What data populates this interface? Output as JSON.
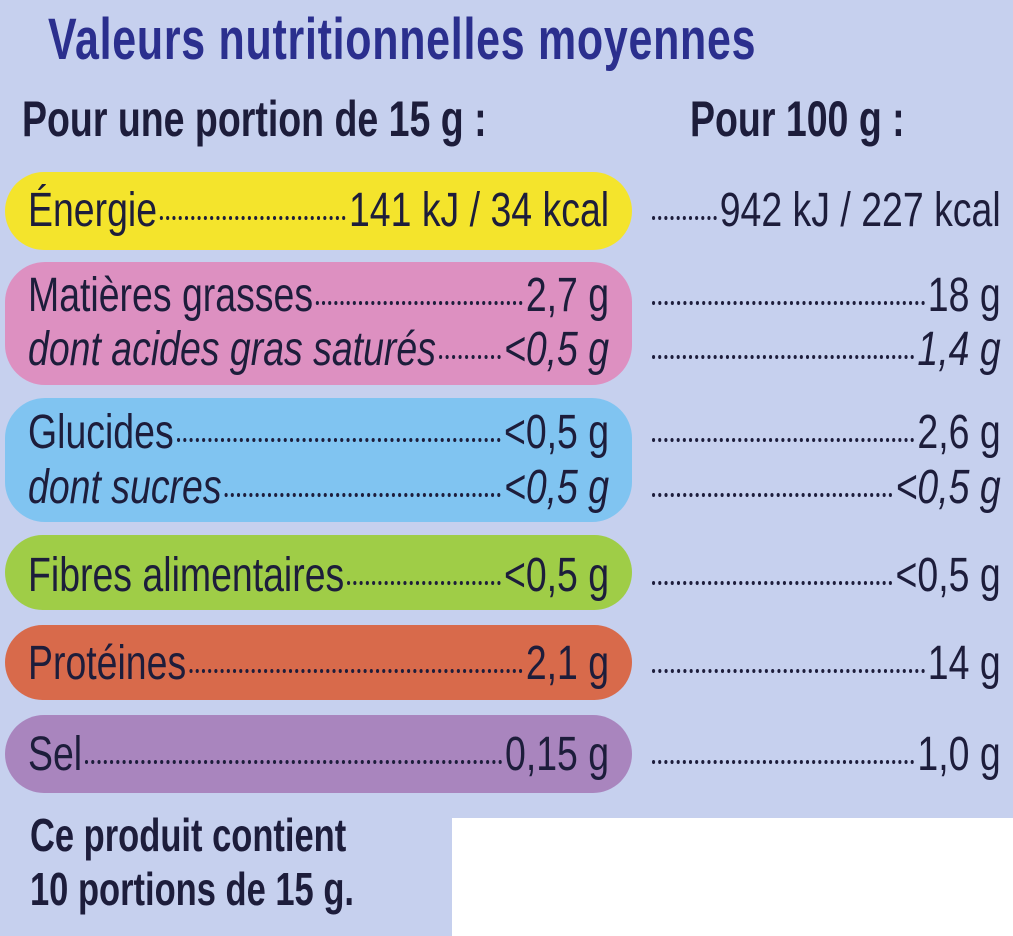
{
  "title": "Valeurs nutritionnelles moyennes",
  "headers": {
    "portion": "Pour une portion de 15 g :",
    "per100": "Pour 100 g :"
  },
  "colors": {
    "title": "#2b2f8e",
    "background": "#c6d0ee",
    "energy": "#f4e42c",
    "fat": "#dd90c1",
    "carbs": "#80c4f1",
    "fibre": "#9fcd47",
    "protein": "#d86a4b",
    "salt": "#a985be"
  },
  "rows": [
    {
      "label": "Énergie",
      "portion": "141 kJ / 34 kcal",
      "per100": "942 kJ / 227 kcal"
    },
    {
      "label": "Matières grasses",
      "portion": "2,7 g",
      "per100": "18 g"
    },
    {
      "label": "dont acides gras saturés",
      "portion": "<0,5 g",
      "per100": "1,4 g"
    },
    {
      "label": "Glucides",
      "portion": "<0,5 g",
      "per100": "2,6 g"
    },
    {
      "label": "dont sucres",
      "portion": "<0,5 g",
      "per100": "<0,5 g"
    },
    {
      "label": "Fibres alimentaires",
      "portion": "<0,5 g",
      "per100": "<0,5 g"
    },
    {
      "label": "Protéines",
      "portion": "2,1 g",
      "per100": "14 g"
    },
    {
      "label": "Sel",
      "portion": "0,15 g",
      "per100": "1,0 g"
    }
  ],
  "footer": {
    "line1": "Ce produit contient",
    "line2": "10 portions de 15 g."
  }
}
